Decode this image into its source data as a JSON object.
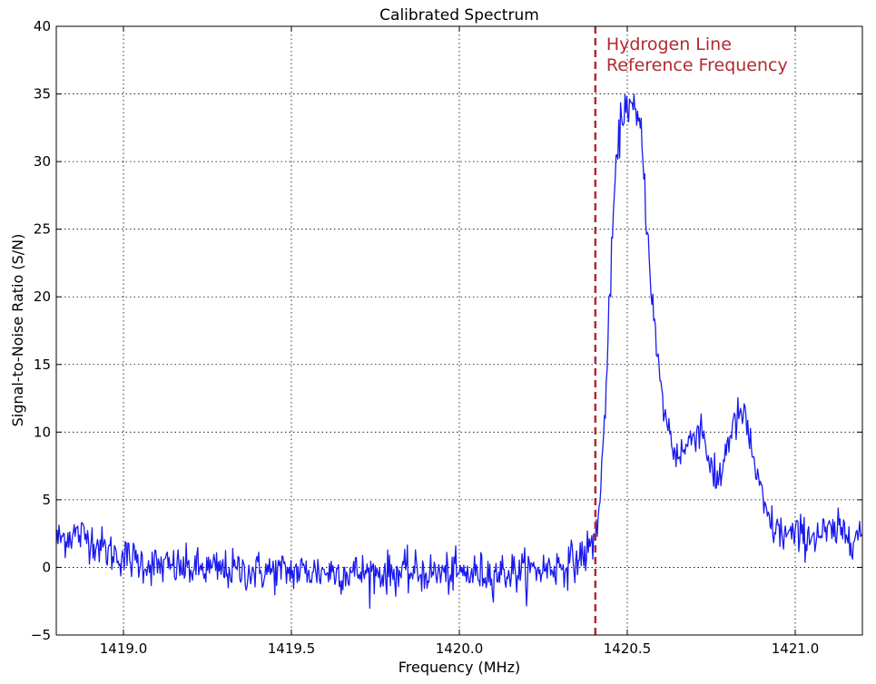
{
  "chart_data": {
    "type": "line",
    "title": "Calibrated Spectrum",
    "xlabel": "Frequency (MHz)",
    "ylabel": "Signal-to-Noise Ratio (S/N)",
    "xlim": [
      1418.8,
      1421.2
    ],
    "ylim": [
      -5,
      40
    ],
    "xticks": [
      1419.0,
      1419.5,
      1420.0,
      1420.5,
      1421.0
    ],
    "xtick_labels": [
      "1419.0",
      "1419.5",
      "1420.0",
      "1420.5",
      "1421.0"
    ],
    "yticks": [
      -5,
      0,
      5,
      10,
      15,
      20,
      25,
      30,
      35,
      40
    ],
    "ytick_labels": [
      "−5",
      "0",
      "5",
      "10",
      "15",
      "20",
      "25",
      "30",
      "35",
      "40"
    ],
    "grid": true,
    "grid_style": "dotted",
    "series": [
      {
        "color": "#1a1aee",
        "x": [
          1418.8,
          1418.85,
          1418.9,
          1418.95,
          1419.0,
          1419.05,
          1419.1,
          1419.2,
          1419.3,
          1419.4,
          1419.5,
          1419.6,
          1419.7,
          1419.8,
          1419.9,
          1420.0,
          1420.1,
          1420.2,
          1420.3,
          1420.35,
          1420.38,
          1420.4,
          1420.42,
          1420.44,
          1420.46,
          1420.48,
          1420.5,
          1420.52,
          1420.54,
          1420.56,
          1420.58,
          1420.6,
          1420.62,
          1420.64,
          1420.66,
          1420.68,
          1420.7,
          1420.72,
          1420.74,
          1420.76,
          1420.78,
          1420.8,
          1420.82,
          1420.84,
          1420.86,
          1420.88,
          1420.9,
          1420.92,
          1420.94,
          1420.96,
          1420.98,
          1421.0,
          1421.05,
          1421.1,
          1421.15,
          1421.2
        ],
        "y": [
          2.0,
          2.5,
          2.2,
          1.2,
          0.8,
          0.4,
          0.1,
          -0.1,
          -0.2,
          -0.3,
          -0.3,
          -0.3,
          -0.4,
          -0.4,
          -0.4,
          -0.5,
          -0.4,
          -0.3,
          0.1,
          0.5,
          1.2,
          1.8,
          5.0,
          15.0,
          27.0,
          33.0,
          34.5,
          33.5,
          32.5,
          25.0,
          18.0,
          13.0,
          10.5,
          8.5,
          8.5,
          9.0,
          10.0,
          10.5,
          8.5,
          6.0,
          7.0,
          9.5,
          10.5,
          11.5,
          10.0,
          7.5,
          5.0,
          3.5,
          2.8,
          2.5,
          2.4,
          2.3,
          2.4,
          2.5,
          2.6,
          2.4
        ]
      }
    ],
    "annotations": [
      {
        "type": "vline",
        "x": 1420.405,
        "color": "#b22a2e",
        "style": "dashed",
        "label_lines": [
          "Hydrogen Line",
          "Reference Frequency"
        ]
      }
    ]
  }
}
